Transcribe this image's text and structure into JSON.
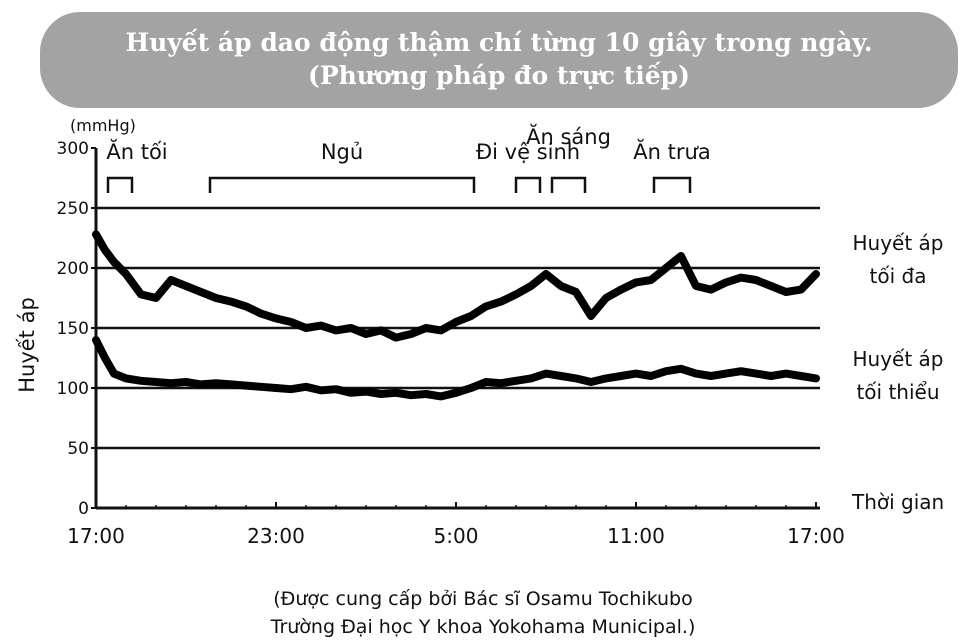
{
  "title": {
    "line1": "Huyết áp dao động thậm chí từng 10 giây trong ngày.",
    "line2": "(Phương pháp đo trực tiếp)"
  },
  "credit": {
    "line1": "(Được cung cấp bởi Bác sĩ Osamu Tochikubo",
    "line2": "Trường Đại học Y khoa Yokohama Municipal.)"
  },
  "chart_data": {
    "type": "line",
    "title": "Huyết áp dao động thậm chí từng 10 giây trong ngày. (Phương pháp đo trực tiếp)",
    "ylabel": "Huyết áp",
    "yunit": "(mmHg)",
    "xlabel": "Thời gian",
    "ylim": [
      0,
      300
    ],
    "yticks": [
      0,
      50,
      100,
      150,
      200,
      250,
      300
    ],
    "xlim": [
      17,
      41
    ],
    "xticks": [
      {
        "x": 17,
        "label": "17:00"
      },
      {
        "x": 23,
        "label": "23:00"
      },
      {
        "x": 29,
        "label": "5:00"
      },
      {
        "x": 35,
        "label": "11:00"
      },
      {
        "x": 41,
        "label": "17:00"
      }
    ],
    "gridlines": [
      50,
      100,
      150,
      200,
      250
    ],
    "activities": [
      {
        "label": "Ăn tối",
        "start": 17.4,
        "end": 18.2
      },
      {
        "label": "Ngủ",
        "start": 20.8,
        "end": 29.6
      },
      {
        "label": "Đi vệ sinh",
        "start": 31.0,
        "end": 31.8
      },
      {
        "label": "Ăn sáng",
        "start": 32.2,
        "end": 33.3
      },
      {
        "label": "Ăn trưa",
        "start": 35.6,
        "end": 36.8
      }
    ],
    "series": [
      {
        "name": "Huyết áp tối đa",
        "x": [
          17,
          17.3,
          17.6,
          18,
          18.5,
          19,
          19.5,
          20,
          20.5,
          21,
          21.5,
          22,
          22.5,
          23,
          23.5,
          24,
          24.5,
          25,
          25.5,
          26,
          26.5,
          27,
          27.5,
          28,
          28.5,
          29,
          29.5,
          30,
          30.5,
          31,
          31.5,
          32,
          32.5,
          33,
          33.5,
          34,
          34.5,
          35,
          35.5,
          36,
          36.5,
          37,
          37.5,
          38,
          38.5,
          39,
          39.5,
          40,
          40.5,
          41
        ],
        "y": [
          228,
          215,
          205,
          195,
          178,
          175,
          190,
          185,
          180,
          175,
          172,
          168,
          162,
          158,
          155,
          150,
          152,
          148,
          150,
          145,
          148,
          142,
          145,
          150,
          148,
          155,
          160,
          168,
          172,
          178,
          185,
          195,
          185,
          180,
          160,
          175,
          182,
          188,
          190,
          200,
          210,
          185,
          182,
          188,
          192,
          190,
          185,
          180,
          182,
          195
        ]
      },
      {
        "name": "Huyết áp tối thiểu",
        "x": [
          17,
          17.3,
          17.6,
          18,
          18.5,
          19,
          19.5,
          20,
          20.5,
          21,
          21.5,
          22,
          22.5,
          23,
          23.5,
          24,
          24.5,
          25,
          25.5,
          26,
          26.5,
          27,
          27.5,
          28,
          28.5,
          29,
          29.5,
          30,
          30.5,
          31,
          31.5,
          32,
          32.5,
          33,
          33.5,
          34,
          34.5,
          35,
          35.5,
          36,
          36.5,
          37,
          37.5,
          38,
          38.5,
          39,
          39.5,
          40,
          40.5,
          41
        ],
        "y": [
          140,
          125,
          112,
          108,
          106,
          105,
          104,
          105,
          103,
          104,
          103,
          102,
          101,
          100,
          99,
          101,
          98,
          99,
          96,
          97,
          95,
          96,
          94,
          95,
          93,
          96,
          100,
          105,
          104,
          106,
          108,
          112,
          110,
          108,
          105,
          108,
          110,
          112,
          110,
          114,
          116,
          112,
          110,
          112,
          114,
          112,
          110,
          112,
          110,
          108
        ]
      }
    ]
  }
}
